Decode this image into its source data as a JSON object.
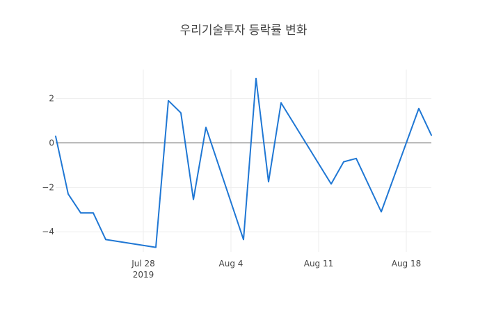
{
  "chart_data": {
    "type": "line",
    "title": "우리기술투자 등락률 변화",
    "xlabel": "",
    "ylabel": "",
    "x_range": [
      "2019-07-21",
      "2019-08-20"
    ],
    "y_range": [
      -4.9,
      3.3
    ],
    "x_ticks": [
      {
        "date": "2019-07-28",
        "label": "Jul 28",
        "sublabel": "2019"
      },
      {
        "date": "2019-08-04",
        "label": "Aug 4",
        "sublabel": ""
      },
      {
        "date": "2019-08-11",
        "label": "Aug 11",
        "sublabel": ""
      },
      {
        "date": "2019-08-18",
        "label": "Aug 18",
        "sublabel": ""
      }
    ],
    "y_ticks": [
      {
        "value": -4,
        "label": "−4"
      },
      {
        "value": -2,
        "label": "−2"
      },
      {
        "value": 0,
        "label": "0"
      },
      {
        "value": 2,
        "label": "2"
      }
    ],
    "grid": true,
    "zero_line": true,
    "color": "#1f77d4",
    "series": [
      {
        "points": [
          {
            "x": "2019-07-21",
            "y": 0.3
          },
          {
            "x": "2019-07-22",
            "y": -2.3
          },
          {
            "x": "2019-07-23",
            "y": -3.15
          },
          {
            "x": "2019-07-24",
            "y": -3.15
          },
          {
            "x": "2019-07-25",
            "y": -4.35
          },
          {
            "x": "2019-07-29",
            "y": -4.7
          },
          {
            "x": "2019-07-30",
            "y": 1.9
          },
          {
            "x": "2019-07-31",
            "y": 1.35
          },
          {
            "x": "2019-08-01",
            "y": -2.55
          },
          {
            "x": "2019-08-02",
            "y": 0.7
          },
          {
            "x": "2019-08-05",
            "y": -4.35
          },
          {
            "x": "2019-08-06",
            "y": 2.9
          },
          {
            "x": "2019-08-07",
            "y": -1.75
          },
          {
            "x": "2019-08-08",
            "y": 1.8
          },
          {
            "x": "2019-08-12",
            "y": -1.85
          },
          {
            "x": "2019-08-13",
            "y": -0.85
          },
          {
            "x": "2019-08-14",
            "y": -0.7
          },
          {
            "x": "2019-08-16",
            "y": -3.1
          },
          {
            "x": "2019-08-19",
            "y": 1.55
          },
          {
            "x": "2019-08-20",
            "y": 0.35
          }
        ]
      }
    ]
  }
}
